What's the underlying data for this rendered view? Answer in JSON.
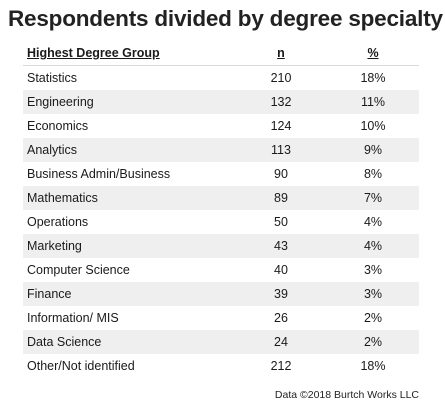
{
  "title": "Respondents divided by degree specialty",
  "table": {
    "headers": [
      "Highest Degree Group",
      "n",
      "%"
    ],
    "rows": [
      [
        "Statistics",
        "210",
        "18%"
      ],
      [
        "Engineering",
        "132",
        "11%"
      ],
      [
        "Economics",
        "124",
        "10%"
      ],
      [
        "Analytics",
        "113",
        "9%"
      ],
      [
        "Business Admin/Business",
        "90",
        "8%"
      ],
      [
        "Mathematics",
        "89",
        "7%"
      ],
      [
        "Operations",
        "50",
        "4%"
      ],
      [
        "Marketing",
        "43",
        "4%"
      ],
      [
        "Computer Science",
        "40",
        "3%"
      ],
      [
        "Finance",
        "39",
        "3%"
      ],
      [
        "Information/ MIS",
        "26",
        "2%"
      ],
      [
        "Data Science",
        "24",
        "2%"
      ],
      [
        "Other/Not identified",
        "212",
        "18%"
      ]
    ]
  },
  "credit": "Data ©2018 Burtch Works LLC"
}
